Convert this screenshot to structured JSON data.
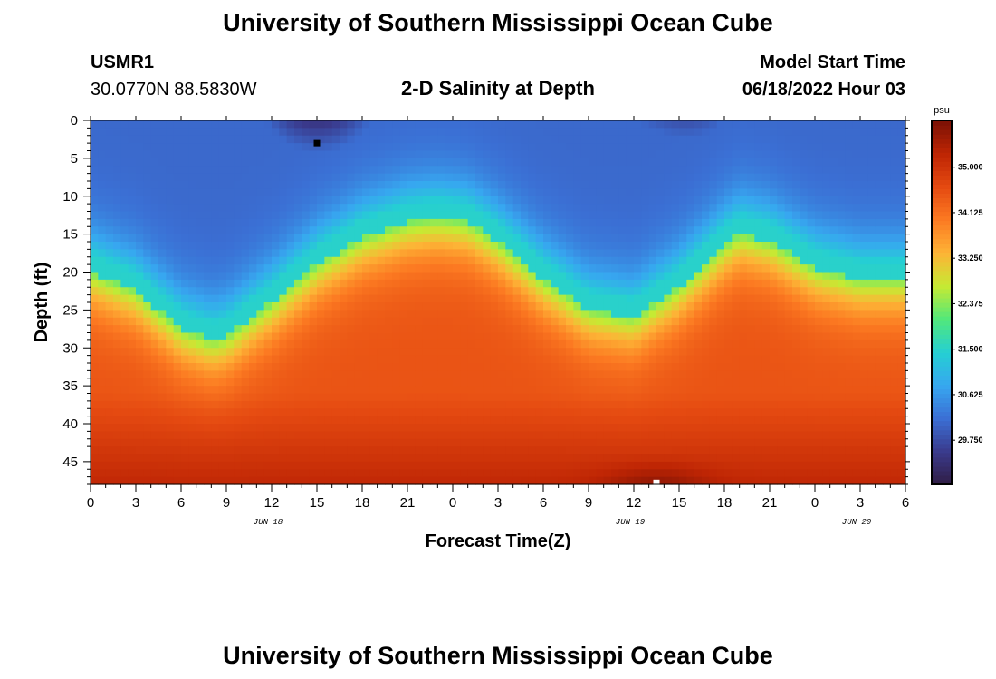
{
  "header": {
    "title": "University of Southern Mississippi Ocean Cube",
    "station_id": "USMR1",
    "coords": "30.0770N  88.5830W",
    "plot_title": "2-D Salinity at Depth",
    "model_label": "Model Start Time",
    "model_time": "06/18/2022 Hour 03"
  },
  "footer": {
    "title": "University of Southern Mississippi Ocean Cube"
  },
  "chart_data": {
    "type": "heatmap",
    "title": "2-D Salinity at Depth",
    "xlabel": "Forecast Time(Z)",
    "ylabel": "Depth (ft)",
    "x_unit": "hours since Jun 18 00Z",
    "xlim": [
      0,
      54
    ],
    "ylim": [
      0,
      48
    ],
    "y_inverted": true,
    "x_ticks": [
      {
        "hour": 0,
        "label": "0"
      },
      {
        "hour": 3,
        "label": "3"
      },
      {
        "hour": 6,
        "label": "6"
      },
      {
        "hour": 9,
        "label": "9"
      },
      {
        "hour": 12,
        "label": "12"
      },
      {
        "hour": 15,
        "label": "15"
      },
      {
        "hour": 18,
        "label": "18"
      },
      {
        "hour": 21,
        "label": "21"
      },
      {
        "hour": 24,
        "label": "0"
      },
      {
        "hour": 27,
        "label": "3"
      },
      {
        "hour": 30,
        "label": "6"
      },
      {
        "hour": 33,
        "label": "9"
      },
      {
        "hour": 36,
        "label": "12"
      },
      {
        "hour": 39,
        "label": "15"
      },
      {
        "hour": 42,
        "label": "18"
      },
      {
        "hour": 45,
        "label": "21"
      },
      {
        "hour": 48,
        "label": "0"
      },
      {
        "hour": 51,
        "label": "3"
      },
      {
        "hour": 54,
        "label": "6"
      }
    ],
    "date_labels": [
      {
        "hour": 12,
        "label": "JUN 18"
      },
      {
        "hour": 36,
        "label": "JUN 19"
      },
      {
        "hour": 51,
        "label": "JUN 20"
      }
    ],
    "y_ticks": [
      {
        "depth": 0,
        "label": "0"
      },
      {
        "depth": 5,
        "label": "5"
      },
      {
        "depth": 10,
        "label": "10"
      },
      {
        "depth": 15,
        "label": "15"
      },
      {
        "depth": 20,
        "label": "20"
      },
      {
        "depth": 25,
        "label": "25"
      },
      {
        "depth": 30,
        "label": "30"
      },
      {
        "depth": 35,
        "label": "35"
      },
      {
        "depth": 40,
        "label": "40"
      },
      {
        "depth": 45,
        "label": "45"
      }
    ],
    "colorbar": {
      "unit": "psu",
      "min": 28.9,
      "max": 35.9,
      "tick_labels": [
        {
          "value": 35.0,
          "label": "35.000"
        },
        {
          "value": 34.125,
          "label": "34.125"
        },
        {
          "value": 33.25,
          "label": "33.250"
        },
        {
          "value": 32.375,
          "label": "32.375"
        },
        {
          "value": 31.5,
          "label": "31.500"
        },
        {
          "value": 30.625,
          "label": "30.625"
        },
        {
          "value": 29.75,
          "label": "29.750"
        }
      ],
      "colors": [
        "#301d44",
        "#3a3a8c",
        "#3b6fd4",
        "#37a7f0",
        "#25cfd3",
        "#52e87a",
        "#c6ea33",
        "#fdb436",
        "#fc7a22",
        "#e54a11",
        "#be2504",
        "#7a1105"
      ]
    },
    "interface_depth": {
      "description": "approximate depth (ft) of the fresh/salty halocline vs forecast hour",
      "hours": [
        0,
        3,
        6,
        8,
        9,
        12,
        15,
        18,
        21,
        23,
        25,
        27,
        30,
        33,
        36,
        39,
        42,
        43,
        45,
        48,
        51,
        54
      ],
      "depth": [
        20,
        22.5,
        27.5,
        29,
        28.5,
        24,
        19,
        15.5,
        13.5,
        13,
        13.5,
        16,
        21,
        25,
        26,
        22,
        16.5,
        15,
        16,
        19.5,
        21,
        21
      ]
    },
    "surface_fresh_center_hours": [
      15,
      40
    ],
    "surface_min_salinity": 29.2,
    "surface_ambient_salinity": 31.5,
    "bottom_max_salinity": 35.8,
    "markers": [
      {
        "hour": 15,
        "depth": 3,
        "color": "#000000"
      },
      {
        "hour": 37.5,
        "depth": 47.8,
        "color": "#ffffff"
      }
    ]
  }
}
